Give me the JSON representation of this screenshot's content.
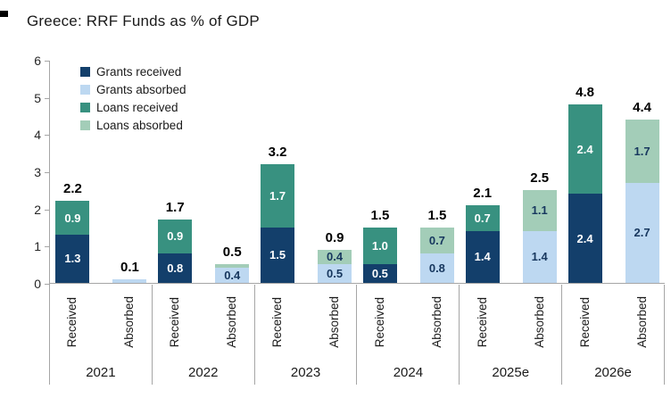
{
  "chart_data": {
    "type": "bar",
    "stacked": true,
    "title": "Greece: RRF Funds as % of GDP",
    "ylim": [
      0,
      6
    ],
    "yticks": [
      0,
      1,
      2,
      3,
      4,
      5,
      6
    ],
    "grid": false,
    "legend_position": "upper-left-inside",
    "legend": [
      {
        "label": "Grants received",
        "color": "#133f6b",
        "text_color": "#ffffff"
      },
      {
        "label": "Grants absorbed",
        "color": "#bdd8f1",
        "text_color": "#17375e"
      },
      {
        "label": "Loans received",
        "color": "#389180",
        "text_color": "#ffffff"
      },
      {
        "label": "Loans absorbed",
        "color": "#a3cdb8",
        "text_color": "#17375e"
      }
    ],
    "bar_axis_labels": [
      "Received",
      "Absorbed"
    ],
    "groups": [
      {
        "year": "2021",
        "bars": [
          {
            "name": "Received",
            "total": "2.2",
            "segments": [
              {
                "series": "Grants received",
                "value": 1.3,
                "label": "1.3"
              },
              {
                "series": "Loans received",
                "value": 0.9,
                "label": "0.9"
              }
            ]
          },
          {
            "name": "Absorbed",
            "total": "0.1",
            "segments": [
              {
                "series": "Grants absorbed",
                "value": 0.1,
                "label": ""
              }
            ]
          }
        ]
      },
      {
        "year": "2022",
        "bars": [
          {
            "name": "Received",
            "total": "1.7",
            "segments": [
              {
                "series": "Grants received",
                "value": 0.8,
                "label": "0.8"
              },
              {
                "series": "Loans received",
                "value": 0.9,
                "label": "0.9"
              }
            ]
          },
          {
            "name": "Absorbed",
            "total": "0.5",
            "segments": [
              {
                "series": "Grants absorbed",
                "value": 0.4,
                "label": "0.4"
              },
              {
                "series": "Loans absorbed",
                "value": 0.1,
                "label": ""
              }
            ]
          }
        ]
      },
      {
        "year": "2023",
        "bars": [
          {
            "name": "Received",
            "total": "3.2",
            "segments": [
              {
                "series": "Grants received",
                "value": 1.5,
                "label": "1.5"
              },
              {
                "series": "Loans received",
                "value": 1.7,
                "label": "1.7"
              }
            ]
          },
          {
            "name": "Absorbed",
            "total": "0.9",
            "segments": [
              {
                "series": "Grants absorbed",
                "value": 0.5,
                "label": "0.5"
              },
              {
                "series": "Loans absorbed",
                "value": 0.4,
                "label": "0.4"
              }
            ]
          }
        ]
      },
      {
        "year": "2024",
        "bars": [
          {
            "name": "Received",
            "total": "1.5",
            "segments": [
              {
                "series": "Grants received",
                "value": 0.5,
                "label": "0.5"
              },
              {
                "series": "Loans received",
                "value": 1.0,
                "label": "1.0"
              }
            ]
          },
          {
            "name": "Absorbed",
            "total": "1.5",
            "segments": [
              {
                "series": "Grants absorbed",
                "value": 0.8,
                "label": "0.8"
              },
              {
                "series": "Loans absorbed",
                "value": 0.7,
                "label": "0.7"
              }
            ]
          }
        ]
      },
      {
        "year": "2025e",
        "bars": [
          {
            "name": "Received",
            "total": "2.1",
            "segments": [
              {
                "series": "Grants received",
                "value": 1.4,
                "label": "1.4"
              },
              {
                "series": "Loans received",
                "value": 0.7,
                "label": "0.7"
              }
            ]
          },
          {
            "name": "Absorbed",
            "total": "2.5",
            "segments": [
              {
                "series": "Grants absorbed",
                "value": 1.4,
                "label": "1.4"
              },
              {
                "series": "Loans absorbed",
                "value": 1.1,
                "label": "1.1"
              }
            ]
          }
        ]
      },
      {
        "year": "2026e",
        "bars": [
          {
            "name": "Received",
            "total": "4.8",
            "segments": [
              {
                "series": "Grants received",
                "value": 2.4,
                "label": "2.4"
              },
              {
                "series": "Loans received",
                "value": 2.4,
                "label": "2.4"
              }
            ]
          },
          {
            "name": "Absorbed",
            "total": "4.4",
            "segments": [
              {
                "series": "Grants absorbed",
                "value": 2.7,
                "label": "2.7"
              },
              {
                "series": "Loans absorbed",
                "value": 1.7,
                "label": "1.7"
              }
            ]
          }
        ]
      }
    ]
  }
}
